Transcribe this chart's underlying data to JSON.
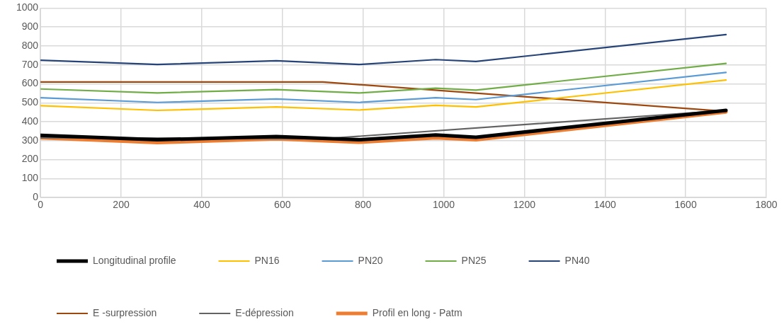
{
  "chart_data": {
    "type": "line",
    "x": [
      0,
      290,
      585,
      790,
      980,
      1080,
      1700
    ],
    "series": [
      {
        "name": "Longitudinal profile",
        "color": "#000000",
        "values": [
          328,
          305,
          322,
          305,
          330,
          318,
          460
        ]
      },
      {
        "name": "PN16",
        "color": "#ffc000",
        "values": [
          485,
          460,
          478,
          462,
          487,
          478,
          620
        ]
      },
      {
        "name": "PN20",
        "color": "#5b9bd5",
        "values": [
          527,
          502,
          520,
          502,
          527,
          517,
          660
        ]
      },
      {
        "name": "PN25",
        "color": "#70ad47",
        "values": [
          573,
          552,
          570,
          552,
          577,
          567,
          708
        ]
      },
      {
        "name": "PN40",
        "color": "#264478",
        "values": [
          725,
          702,
          722,
          702,
          728,
          718,
          860
        ]
      },
      {
        "name": "E -surpression",
        "color": "#9e480e",
        "x": [
          0,
          700,
          1700
        ],
        "values": [
          610,
          610,
          455
        ]
      },
      {
        "name": "E-dépression",
        "color": "#636363",
        "x": [
          0,
          700,
          1700
        ],
        "values": [
          316,
          310,
          460
        ]
      },
      {
        "name": "Profil en long - Patm",
        "color": "#ed7d31",
        "values": [
          315,
          290,
          310,
          292,
          315,
          305,
          452
        ]
      }
    ],
    "xlim": [
      0,
      1800
    ],
    "xticks": [
      0,
      200,
      400,
      600,
      800,
      1000,
      1200,
      1400,
      1600,
      1800
    ],
    "ylim": [
      0,
      1000
    ],
    "yticks": [
      0,
      100,
      200,
      300,
      400,
      500,
      600,
      700,
      800,
      900,
      1000
    ],
    "grid": true,
    "legend": "bottom",
    "marker": "none",
    "line_style": "solid"
  }
}
